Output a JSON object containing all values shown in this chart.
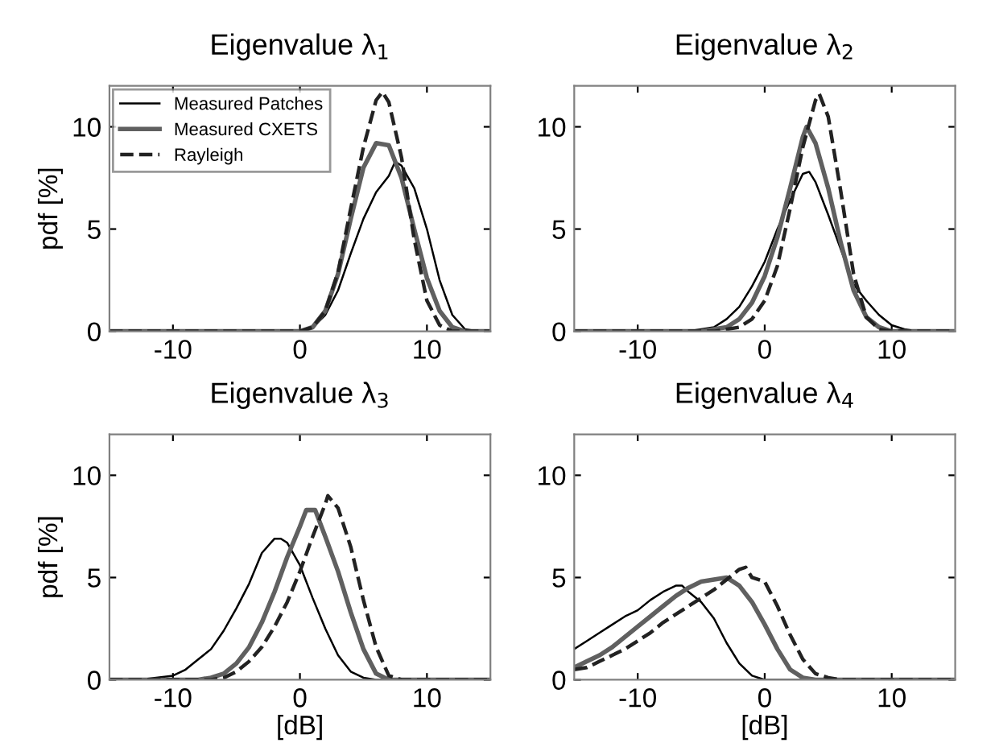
{
  "chart_data": [
    {
      "type": "line",
      "title": "Eigenvalue λ$_{1}$",
      "ylabel": "pdf [%]",
      "xlim": [
        -15,
        15
      ],
      "ylim": [
        0,
        12
      ],
      "xticks": [
        -10,
        0,
        10
      ],
      "yticks": [
        0,
        5,
        10
      ],
      "legend": "top left",
      "grid": false,
      "series": [
        {
          "name": "Measured Patches",
          "color": "#000000",
          "line_style": "solid",
          "x": [
            -15,
            0,
            1,
            2,
            3,
            4,
            5,
            6,
            7,
            7.5,
            8,
            9,
            10,
            11,
            12,
            13,
            14,
            15
          ],
          "values": [
            0,
            0,
            0.2,
            0.8,
            2,
            3.8,
            5.5,
            6.8,
            7.6,
            8.3,
            8.1,
            7,
            5,
            2.5,
            0.8,
            0.1,
            0,
            0
          ]
        },
        {
          "name": "Measured CXETS",
          "color": "#606060",
          "line_style": "solid",
          "x": [
            -15,
            0,
            1,
            2,
            3,
            4,
            5,
            6,
            7,
            8,
            9,
            10,
            11,
            12,
            13,
            15
          ],
          "values": [
            0,
            0,
            0.2,
            1,
            2.8,
            5.5,
            8,
            9.2,
            9.1,
            7.5,
            5,
            2.6,
            1,
            0.2,
            0,
            0
          ]
        },
        {
          "name": "Rayleigh",
          "color": "#222222",
          "line_style": "dashed",
          "x": [
            -15,
            0,
            1,
            2,
            3,
            4,
            5,
            6,
            6.5,
            7,
            8,
            9,
            10,
            11,
            12,
            15
          ],
          "values": [
            0,
            0,
            0.2,
            1,
            2.9,
            6,
            9,
            11.3,
            11.7,
            11.2,
            8.5,
            4.5,
            1.5,
            0.3,
            0,
            0
          ]
        }
      ]
    },
    {
      "type": "line",
      "title": "Eigenvalue λ$_{2}$",
      "xlim": [
        -15,
        15
      ],
      "ylim": [
        0,
        12
      ],
      "xticks": [
        -10,
        0,
        10
      ],
      "yticks": [
        0,
        5,
        10
      ],
      "grid": false,
      "series": [
        {
          "color": "#000000",
          "line_style": "solid",
          "x": [
            -15,
            -6,
            -4,
            -3,
            -2,
            -1,
            0,
            1,
            2,
            3,
            3.5,
            4,
            5,
            6,
            7,
            8,
            9,
            10,
            11,
            12,
            15
          ],
          "values": [
            0,
            0,
            0.2,
            0.6,
            1.2,
            2.2,
            3.4,
            5,
            6.4,
            7.7,
            7.8,
            7.3,
            5.7,
            4,
            2.3,
            1.5,
            0.8,
            0.3,
            0.1,
            0,
            0
          ]
        },
        {
          "color": "#606060",
          "line_style": "solid",
          "x": [
            -15,
            -5,
            -3,
            -2,
            -1,
            0,
            1,
            2,
            3,
            3.3,
            4,
            5,
            6,
            7,
            8,
            9,
            10,
            15
          ],
          "values": [
            0,
            0,
            0.2,
            0.6,
            1.4,
            2.7,
            4.6,
            7,
            9.5,
            10,
            9.2,
            7,
            4.3,
            2,
            0.7,
            0.2,
            0,
            0
          ]
        },
        {
          "color": "#222222",
          "line_style": "dashed",
          "x": [
            -15,
            -4,
            -2,
            -1,
            0,
            1,
            2,
            3,
            4,
            4.3,
            5,
            6,
            7,
            8,
            9,
            10,
            15
          ],
          "values": [
            0,
            0,
            0.2,
            0.6,
            1.5,
            3.2,
            6,
            9,
            11.3,
            11.6,
            10.5,
            6.8,
            2.8,
            0.7,
            0.1,
            0,
            0
          ]
        }
      ]
    },
    {
      "type": "line",
      "title": "Eigenvalue λ$_{3}$",
      "xlabel": "[dB]",
      "ylabel": "pdf [%]",
      "xlim": [
        -15,
        15
      ],
      "ylim": [
        0,
        12
      ],
      "xticks": [
        -10,
        0,
        10
      ],
      "yticks": [
        0,
        5,
        10
      ],
      "grid": false,
      "series": [
        {
          "color": "#000000",
          "line_style": "solid",
          "x": [
            -15,
            -12,
            -10,
            -9,
            -8,
            -7,
            -6,
            -5,
            -4,
            -3,
            -2,
            -1.5,
            -1,
            0,
            1,
            2,
            3,
            4,
            5,
            6,
            15
          ],
          "values": [
            0,
            0.05,
            0.2,
            0.5,
            1,
            1.5,
            2.4,
            3.5,
            4.7,
            6.2,
            6.9,
            6.9,
            6.7,
            5.6,
            4,
            2.5,
            1.2,
            0.4,
            0.1,
            0,
            0
          ]
        },
        {
          "color": "#606060",
          "line_style": "solid",
          "x": [
            -15,
            -8,
            -7,
            -6,
            -5,
            -4,
            -3,
            -2,
            -1,
            0,
            0.5,
            1.2,
            2,
            3,
            4,
            5,
            6,
            7,
            15
          ],
          "values": [
            0,
            0,
            0.1,
            0.3,
            0.8,
            1.6,
            2.8,
            4.3,
            6,
            7.5,
            8.3,
            8.3,
            7,
            5.3,
            3.3,
            1.5,
            0.3,
            0,
            0
          ]
        },
        {
          "color": "#222222",
          "line_style": "dashed",
          "x": [
            -15,
            -7,
            -6,
            -5,
            -4,
            -3,
            -2,
            -1,
            0,
            1,
            2,
            2.2,
            3,
            4,
            5,
            6,
            7,
            8,
            15
          ],
          "values": [
            0,
            0,
            0.1,
            0.4,
            0.9,
            1.6,
            2.6,
            3.8,
            5.3,
            7,
            8.6,
            9,
            8.4,
            6.5,
            3.9,
            1.6,
            0.2,
            0,
            0
          ]
        }
      ]
    },
    {
      "type": "line",
      "title": "Eigenvalue λ$_{4}$",
      "xlabel": "[dB]",
      "xlim": [
        -15,
        15
      ],
      "ylim": [
        0,
        12
      ],
      "xticks": [
        -10,
        0,
        10
      ],
      "yticks": [
        0,
        5,
        10
      ],
      "grid": false,
      "series": [
        {
          "color": "#000000",
          "line_style": "solid",
          "x": [
            -15,
            -14,
            -13,
            -12,
            -11,
            -10,
            -9,
            -8,
            -7,
            -6.5,
            -6,
            -5,
            -4,
            -3,
            -2,
            -1,
            0,
            15
          ],
          "values": [
            1.5,
            1.9,
            2.3,
            2.7,
            3.1,
            3.4,
            3.9,
            4.3,
            4.6,
            4.6,
            4.3,
            3.8,
            3,
            1.8,
            0.8,
            0.2,
            0,
            0
          ]
        },
        {
          "color": "#606060",
          "line_style": "solid",
          "x": [
            -15,
            -14,
            -13,
            -12,
            -11,
            -10,
            -9,
            -8,
            -7,
            -6,
            -5,
            -4,
            -3,
            -2,
            -1,
            0,
            1,
            2,
            3,
            4,
            15
          ],
          "values": [
            0.6,
            0.9,
            1.2,
            1.6,
            2.1,
            2.6,
            3.1,
            3.6,
            4.1,
            4.5,
            4.8,
            4.9,
            5,
            4.6,
            3.8,
            2.7,
            1.5,
            0.5,
            0.1,
            0,
            0
          ]
        },
        {
          "color": "#222222",
          "line_style": "dashed",
          "x": [
            -15,
            -14,
            -13,
            -12,
            -11,
            -10,
            -9,
            -8,
            -7,
            -6,
            -5,
            -4,
            -3,
            -2,
            -1.5,
            -1,
            0,
            1,
            2,
            3,
            4,
            5,
            6,
            15
          ],
          "values": [
            0.5,
            0.6,
            0.9,
            1.2,
            1.5,
            1.9,
            2.3,
            2.8,
            3.2,
            3.6,
            4,
            4.4,
            4.9,
            5.4,
            5.5,
            5,
            4.8,
            3.6,
            2.2,
            1,
            0.3,
            0.1,
            0,
            0
          ]
        }
      ]
    }
  ]
}
